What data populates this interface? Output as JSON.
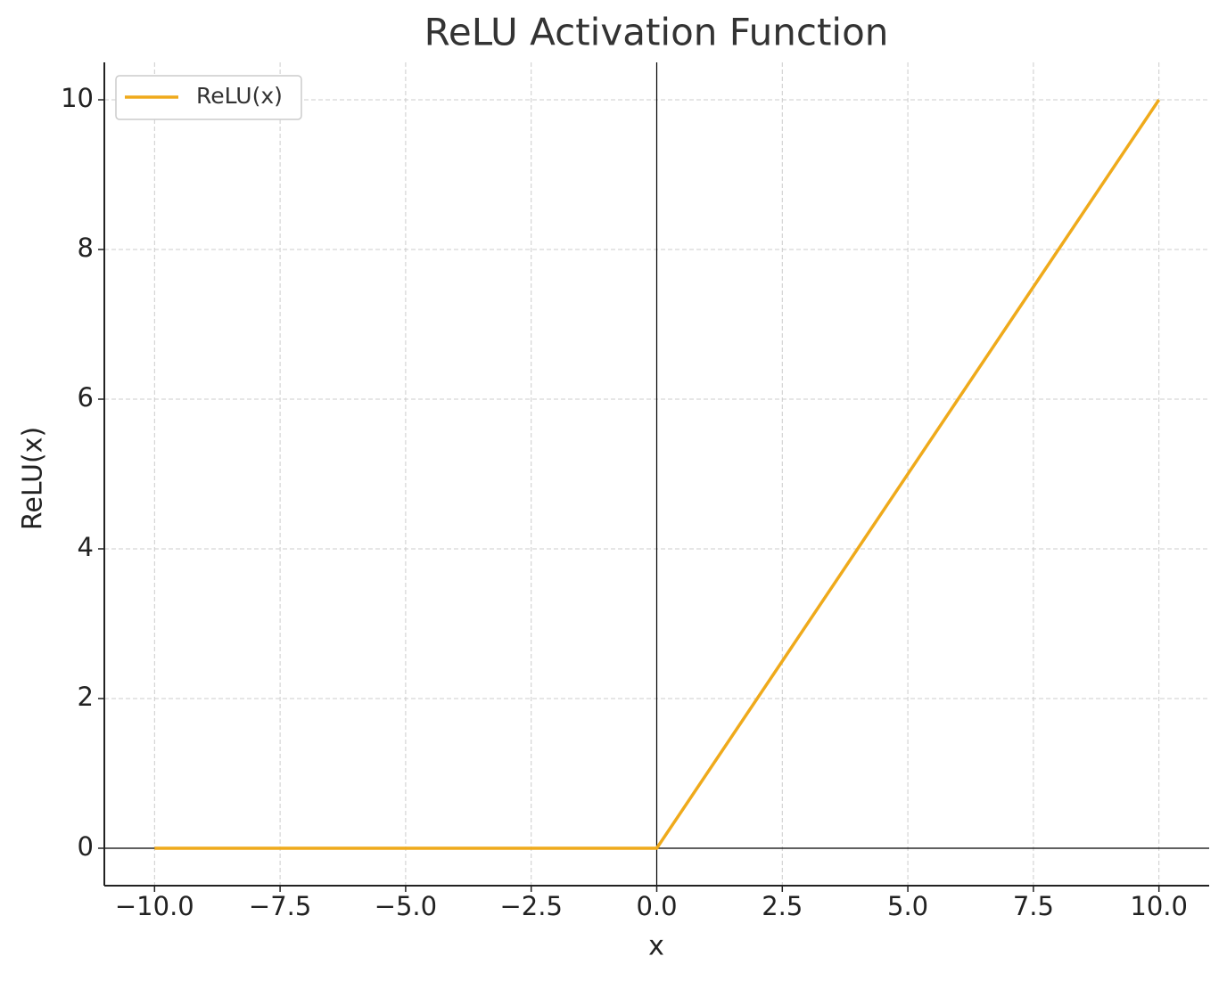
{
  "chart_data": {
    "type": "line",
    "title": "ReLU Activation Function",
    "x_label": "x",
    "y_label": "ReLU(x)",
    "x": [
      -10,
      0,
      10
    ],
    "series": [
      {
        "name": "ReLU(x)",
        "color": "#efaa1b",
        "values": [
          0,
          0,
          10
        ]
      }
    ],
    "xlim": [
      -11,
      11
    ],
    "ylim": [
      -0.5,
      10.5
    ],
    "xticks": [
      {
        "value": -10,
        "label": "−10.0"
      },
      {
        "value": -7.5,
        "label": "−7.5"
      },
      {
        "value": -5,
        "label": "−5.0"
      },
      {
        "value": -2.5,
        "label": "−2.5"
      },
      {
        "value": 0,
        "label": "0.0"
      },
      2.5,
      {
        "value": 5,
        "label": "5.0"
      },
      7.5,
      {
        "value": 10,
        "label": "10.0"
      }
    ],
    "yticks": [
      0,
      2,
      4,
      6,
      8,
      10
    ],
    "hlines": [
      0
    ],
    "vlines": [
      0
    ],
    "grid": true,
    "legend": "upper-left"
  }
}
